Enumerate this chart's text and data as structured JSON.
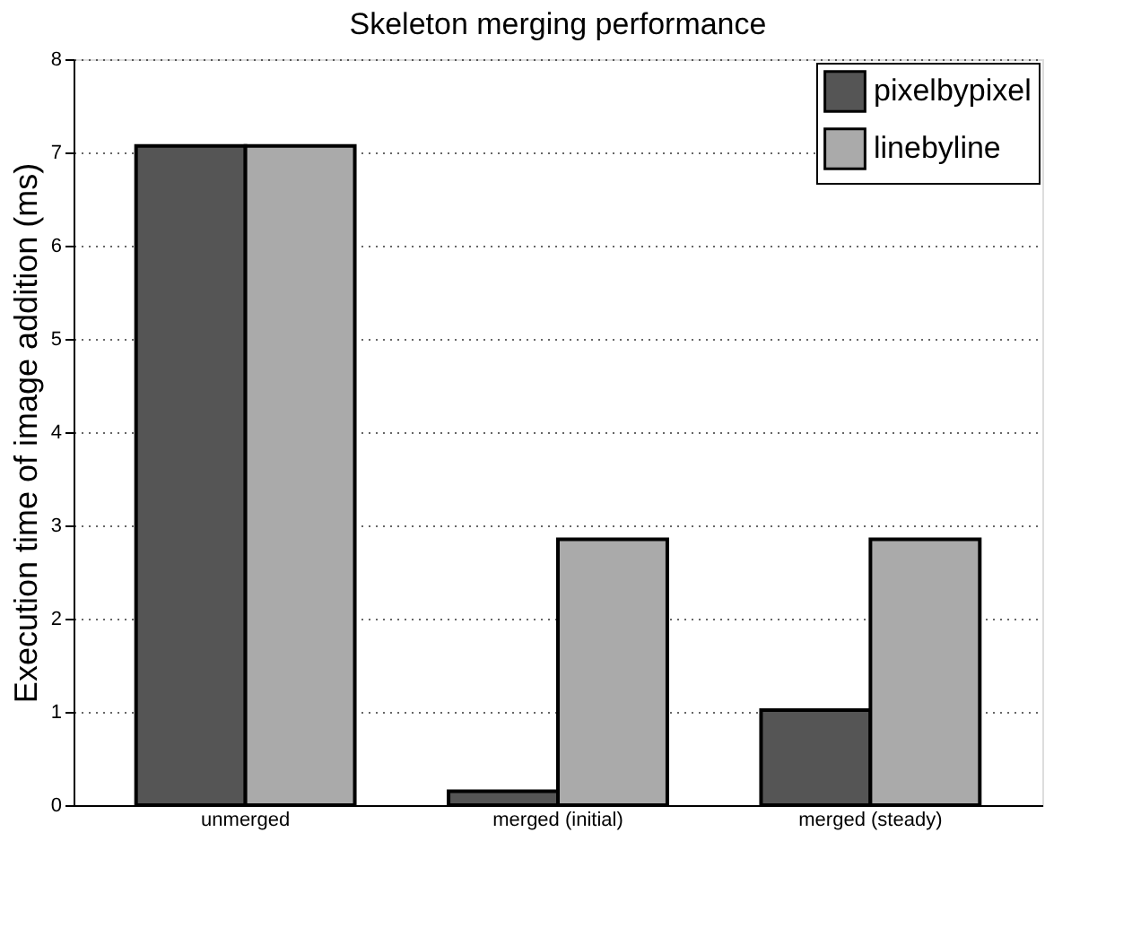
{
  "chart_data": {
    "type": "bar",
    "title": "Skeleton merging performance",
    "ylabel": "Execution time of image addition (ms)",
    "categories": [
      "unmerged",
      "merged (initial)",
      "merged (steady)"
    ],
    "series": [
      {
        "name": "pixelbypixel",
        "color": "#555555",
        "values": [
          7.07,
          0.15,
          1.02
        ]
      },
      {
        "name": "linebyline",
        "color": "#aaaaaa",
        "values": [
          7.07,
          2.85,
          2.85
        ]
      }
    ],
    "ylim": [
      0,
      8
    ],
    "yticks": [
      0,
      1,
      2,
      3,
      4,
      5,
      6,
      7,
      8
    ],
    "grid": "y",
    "legend": "top right"
  }
}
